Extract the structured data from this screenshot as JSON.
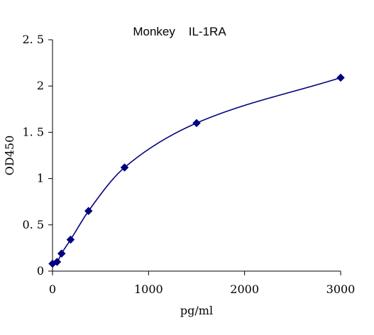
{
  "chart_data": {
    "type": "scatter",
    "title": "Monkey    IL-1RA",
    "xlabel": "pg/ml",
    "ylabel": "OD450",
    "xlim": [
      0,
      3000
    ],
    "ylim": [
      0,
      2.5
    ],
    "x_ticks": [
      {
        "value": 0,
        "label": "0"
      },
      {
        "value": 1000,
        "label": "1000"
      },
      {
        "value": 2000,
        "label": "2000"
      },
      {
        "value": 3000,
        "label": "3000"
      }
    ],
    "y_ticks": [
      {
        "value": 0,
        "label": "0"
      },
      {
        "value": 0.5,
        "label": "0. 5"
      },
      {
        "value": 1,
        "label": "1"
      },
      {
        "value": 1.5,
        "label": "1. 5"
      },
      {
        "value": 2,
        "label": "2"
      },
      {
        "value": 2.5,
        "label": "2. 5"
      }
    ],
    "grid": false,
    "legend": "none",
    "series": [
      {
        "marker": "diamond",
        "color": "#000080",
        "x": [
          0,
          47,
          94,
          188,
          375,
          750,
          1500,
          3000
        ],
        "y": [
          0.08,
          0.1,
          0.19,
          0.34,
          0.65,
          1.12,
          1.6,
          2.09
        ],
        "fit_line": "smooth"
      }
    ]
  }
}
